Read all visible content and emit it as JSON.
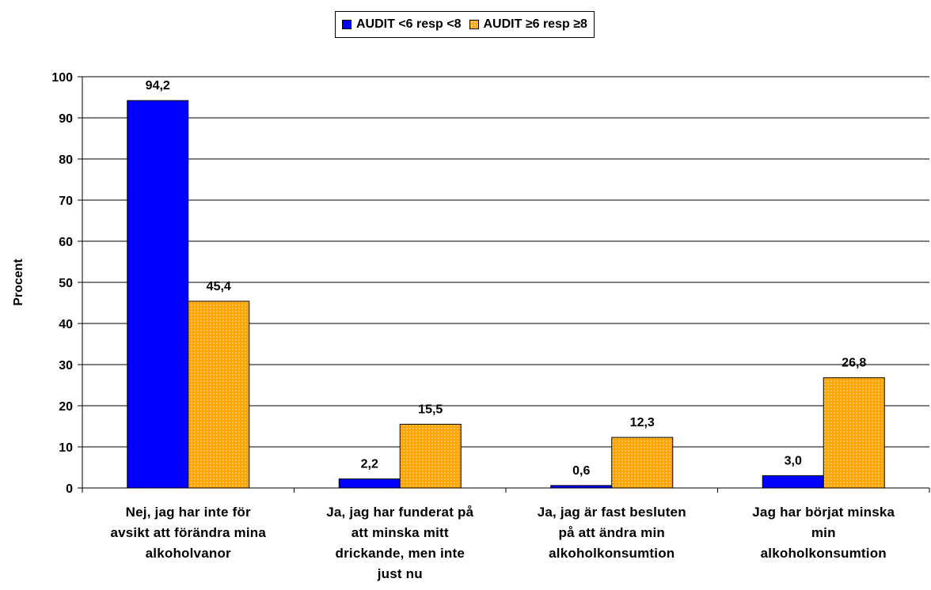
{
  "chart_data": {
    "type": "bar",
    "ylabel": "Procent",
    "xlabel": "",
    "ylim": [
      0,
      100
    ],
    "yticks": [
      0,
      10,
      20,
      30,
      40,
      50,
      60,
      70,
      80,
      90,
      100
    ],
    "grid": true,
    "legend_position": "top-center",
    "categories": [
      "Nej, jag har inte för avsikt att förändra mina alkoholvanor",
      "Ja, jag har funderat på att minska mitt drickande, men inte just nu",
      "Ja, jag är fast besluten på att ändra min alkoholkonsumtion",
      "Jag har börjat minska min alkoholkonsumtion"
    ],
    "category_lines": [
      [
        "Nej, jag har inte för",
        "avsikt att förändra mina",
        "alkoholvanor"
      ],
      [
        "Ja, jag har funderat på",
        "att minska mitt",
        "drickande, men inte",
        "just nu"
      ],
      [
        "Ja, jag är fast besluten",
        "på att ändra min",
        "alkoholkonsumtion"
      ],
      [
        "Jag har börjat minska",
        "min",
        "alkoholkonsumtion"
      ]
    ],
    "series": [
      {
        "name": "AUDIT <6 resp <8",
        "color": "#0000ff",
        "values": [
          94.2,
          2.2,
          0.6,
          3.0
        ],
        "labels": [
          "94,2",
          "2,2",
          "0,6",
          "3,0"
        ]
      },
      {
        "name": "AUDIT ≥6 resp ≥8",
        "color": "#ffa500",
        "values": [
          45.4,
          15.5,
          12.3,
          26.8
        ],
        "labels": [
          "45,4",
          "15,5",
          "12,3",
          "26,8"
        ]
      }
    ]
  }
}
